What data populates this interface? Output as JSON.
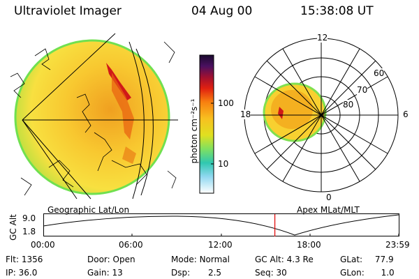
{
  "header": {
    "instrument": "Ultraviolet Imager",
    "date": "04 Aug 00",
    "time": "15:38:08 UT"
  },
  "colorbar": {
    "label": "photon cm⁻²s⁻¹",
    "ticks": [
      "100",
      "10"
    ],
    "colors": [
      "#1a0a2e",
      "#3a1050",
      "#7a1040",
      "#c01020",
      "#e85010",
      "#f8a000",
      "#f8d020",
      "#c8e020",
      "#80e060",
      "#30c8b0",
      "#90d8f0",
      "#ffffff"
    ]
  },
  "polar": {
    "top_label": "12",
    "bottom_label": "0",
    "left_label": "18",
    "right_label": "6",
    "rings": [
      "60",
      "70",
      "80"
    ]
  },
  "maps": {
    "left_caption": "Geographic Lat/Lon",
    "right_caption": "Apex MLat/MLT"
  },
  "alt_plot": {
    "ylabel": "GC Alt",
    "yticks": [
      "9.0",
      "1.8"
    ],
    "xticks": [
      "00:00",
      "06:00",
      "12:00",
      "18:00",
      "23:59"
    ],
    "marker_time_hours": 15.635
  },
  "info": {
    "flt_label": "Flt:",
    "flt_value": "1356",
    "ip_label": "IP:",
    "ip_value": "36.0",
    "door_label": "Door:",
    "door_value": "Open",
    "gain_label": "Gain:",
    "gain_value": "13",
    "mode_label": "Mode:",
    "mode_value": "Normal",
    "dsp_label": "Dsp:",
    "dsp_value": "2.5",
    "gcalt_label": "GC Alt:",
    "gcalt_value": "4.3 Re",
    "seq_label": "Seq:",
    "seq_value": "30",
    "glat_label": "GLat:",
    "glat_value": "77.9",
    "glon_label": "GLon:",
    "glon_value": "1.0"
  }
}
